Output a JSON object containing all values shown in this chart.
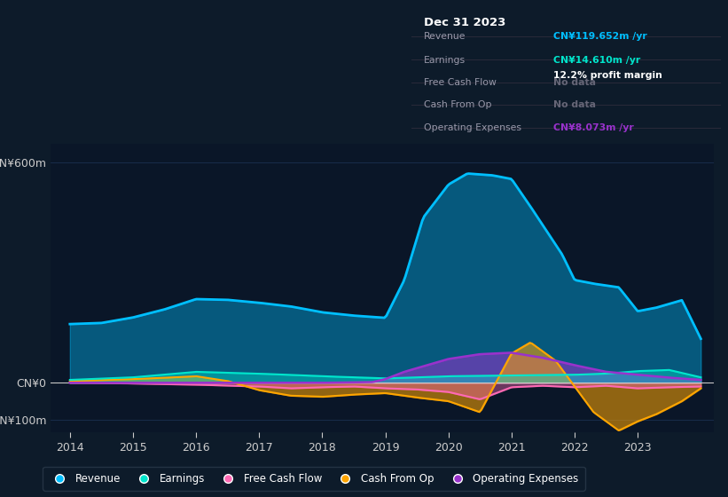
{
  "background_color": "#0d1b2a",
  "plot_bg_color": "#0a1628",
  "title": "Dec 31 2023",
  "revenue_color": "#00bfff",
  "earnings_color": "#00e5cc",
  "free_cash_flow_color": "#ff69b4",
  "cash_from_op_color": "#ffa500",
  "operating_expenses_color": "#9932cc",
  "ylim_top": 650,
  "ylim_bottom": -135,
  "y_ticks": [
    600,
    0,
    -100
  ],
  "y_tick_labels": [
    "CN¥600m",
    "CN¥0",
    "-CN¥100m"
  ],
  "x_ticks": [
    2014,
    2015,
    2016,
    2017,
    2018,
    2019,
    2020,
    2021,
    2022,
    2023
  ],
  "legend_labels": [
    "Revenue",
    "Earnings",
    "Free Cash Flow",
    "Cash From Op",
    "Operating Expenses"
  ],
  "grid_color": "#1a3050",
  "zero_line_color": "#c8c8c8",
  "info_box_bg": "#111827",
  "info_box_border": "#2a2a3a",
  "rev_x": [
    2014,
    2014.5,
    2015,
    2015.5,
    2016,
    2016.5,
    2017,
    2017.5,
    2018,
    2018.5,
    2019,
    2019.3,
    2019.6,
    2020,
    2020.3,
    2020.7,
    2021,
    2021.3,
    2021.8,
    2022,
    2022.3,
    2022.7,
    2023,
    2023.3,
    2023.7,
    2024
  ],
  "rev_y": [
    160,
    163,
    178,
    200,
    228,
    226,
    218,
    208,
    192,
    183,
    177,
    280,
    450,
    540,
    570,
    565,
    555,
    480,
    350,
    280,
    270,
    260,
    195,
    205,
    225,
    120
  ],
  "earn_x": [
    2014,
    2015,
    2016,
    2017,
    2018,
    2019,
    2020,
    2021,
    2022,
    2022.5,
    2023,
    2023.5,
    2024
  ],
  "earn_y": [
    8,
    15,
    30,
    25,
    18,
    12,
    18,
    20,
    22,
    25,
    32,
    35,
    15
  ],
  "fcf_x": [
    2014,
    2015,
    2016,
    2017,
    2017.5,
    2018,
    2018.5,
    2019,
    2019.5,
    2020,
    2020.5,
    2021,
    2021.5,
    2022,
    2022.5,
    2023,
    2023.5,
    2024
  ],
  "fcf_y": [
    2,
    -2,
    -5,
    -10,
    -15,
    -12,
    -10,
    -15,
    -18,
    -25,
    -45,
    -12,
    -8,
    -12,
    -8,
    -15,
    -12,
    -10
  ],
  "cfo_x": [
    2014,
    2015,
    2016,
    2016.5,
    2017,
    2017.5,
    2018,
    2018.5,
    2019,
    2019.5,
    2020,
    2020.5,
    2021,
    2021.3,
    2021.7,
    2022,
    2022.3,
    2022.7,
    2023,
    2023.3,
    2023.7,
    2024
  ],
  "cfo_y": [
    5,
    10,
    18,
    5,
    -20,
    -35,
    -38,
    -32,
    -28,
    -40,
    -50,
    -80,
    80,
    110,
    60,
    -10,
    -80,
    -130,
    -105,
    -85,
    -50,
    -15
  ],
  "opex_x": [
    2014,
    2015,
    2016,
    2017,
    2018,
    2018.8,
    2019,
    2019.3,
    2019.8,
    2020,
    2020.5,
    2021,
    2021.5,
    2022,
    2022.5,
    2023,
    2023.5,
    2024
  ],
  "opex_y": [
    0,
    0,
    0,
    0,
    0,
    2,
    10,
    30,
    55,
    65,
    78,
    82,
    68,
    48,
    30,
    22,
    14,
    8
  ]
}
